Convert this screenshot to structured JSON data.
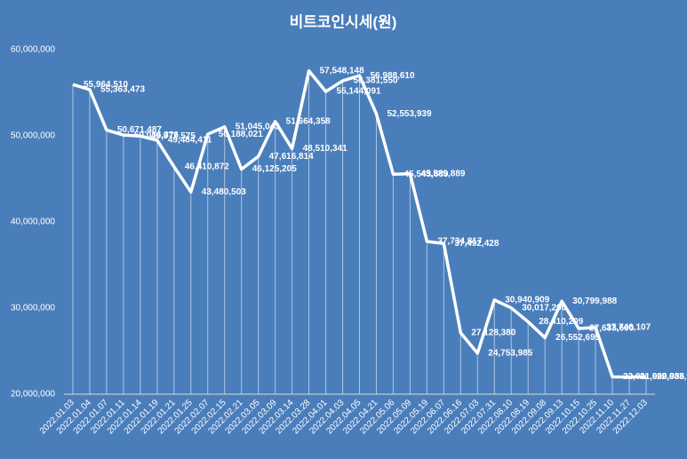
{
  "chart_data": {
    "type": "line",
    "title": "비트코인시세(원)",
    "categories": [
      "2022.01.03",
      "2022.01.04",
      "2022.01.07",
      "2022.01.11",
      "2022.01.14",
      "2022.01.19",
      "2022.01.21",
      "2022.01.25",
      "2022.02.07",
      "2022.02.15",
      "2022.02.21",
      "2022.03.05",
      "2022.03.09",
      "2022.03.14",
      "2022.03.28",
      "2022.04.01",
      "2022.04.03",
      "2022.04.05",
      "2022.04.21",
      "2022.05.06",
      "2022.05.09",
      "2022.05.19",
      "2022.06.07",
      "2022.06.16",
      "2022.07.03",
      "2022.07.31",
      "2022.08.10",
      "2022.08.19",
      "2022.09.08",
      "2022.09.13",
      "2022.10.15",
      "2022.10.25",
      "2022.11.10",
      "2022.11.27",
      "2022.12.03"
    ],
    "values": [
      55964510,
      55363473,
      50671487,
      50086376,
      49977575,
      49484411,
      46410872,
      43480503,
      50188021,
      51045043,
      46125205,
      47616814,
      51664358,
      48510341,
      57548148,
      55144091,
      56381550,
      56988610,
      52553939,
      45543889,
      45589889,
      37734817,
      37492428,
      27128380,
      24753985,
      30940909,
      30017200,
      28410209,
      26552695,
      30799988,
      27633600,
      27746107,
      22011000,
      21999986,
      22033986
    ],
    "value_labels": [
      "55,964,510",
      "55,363,473",
      "50,671,487",
      "50,086,376",
      "49,977,575",
      "49,484,411",
      "46,410,872",
      "43,480,503",
      "50,188,021",
      "51,045,043",
      "46,125,205",
      "47,616,814",
      "51,664,358",
      "48,510,341",
      "57,548,148",
      "55,144,091",
      "56,381,550",
      "56,988,610",
      "52,553,939",
      "45,543,889",
      "45,589,889",
      "37,734,817",
      "37,492,428",
      "27,128,380",
      "24,753,985",
      "30,940,909",
      "30,017,200",
      "28,410,209",
      "26,552,695",
      "30,799,988",
      "27,633,600",
      "27,746,107",
      "22,011,000",
      "21,999,986",
      "22,033,986"
    ],
    "color": "#ffffff",
    "ylim": [
      20000000,
      60000000
    ],
    "yticks": [
      {
        "value": 20000000,
        "label": "20,000,000"
      },
      {
        "value": 30000000,
        "label": "30,000,000"
      },
      {
        "value": 40000000,
        "label": "40,000,000"
      },
      {
        "value": 50000000,
        "label": "50,000,000"
      },
      {
        "value": 60000000,
        "label": "60,000,000"
      }
    ],
    "drop_lines": true
  }
}
